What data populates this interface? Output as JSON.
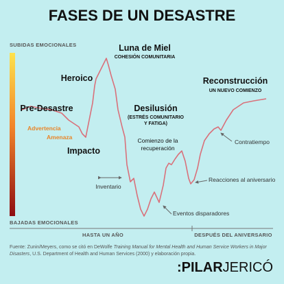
{
  "header": {
    "title": "FASES DE UN DESASTRE"
  },
  "scale": {
    "top": "SUBIDAS EMOCIONALES",
    "bottom": "BAJADAS EMOCIONALES"
  },
  "timeline": {
    "first": "HASTA UN AÑO",
    "second": "DESPUÉS DEL ANIVERSARIO"
  },
  "phases": [
    {
      "label": "Pre-Desastre"
    },
    {
      "label": "Heroico"
    },
    {
      "label": "Luna de Miel",
      "sub": "COHESIÓN COMUNITARIA"
    },
    {
      "label": "Impacto"
    },
    {
      "label": "Desilusión",
      "sub": [
        "(ESTRÉS COMUNITARIO",
        "Y FATIGA)"
      ]
    },
    {
      "label": "Reconstrucción",
      "sub": "UN NUEVO COMIENZO"
    }
  ],
  "warnings": [
    "Advertencia",
    "Amenaza"
  ],
  "annotations": {
    "recovery": [
      "Comienzo de la",
      "recuperación"
    ],
    "inventory": "Inventario",
    "triggers": "Eventos disparadores",
    "anniversary": "Reacciones al aniversario",
    "setback": "Contratiempo"
  },
  "source": {
    "lead": "Fuente: Zunin/Meyers, como se citó en DeWolfe ",
    "italic_1": "Training Manual for Mental Health and Human Service Workers in Major",
    "italic_2": "Disasters",
    "tail": ", U.S. Department of Health and Human Services (2000) y elaboración propia."
  },
  "logo": {
    "colon": ":",
    "bold": "PILAR",
    "regular": "JERICÓ"
  }
}
